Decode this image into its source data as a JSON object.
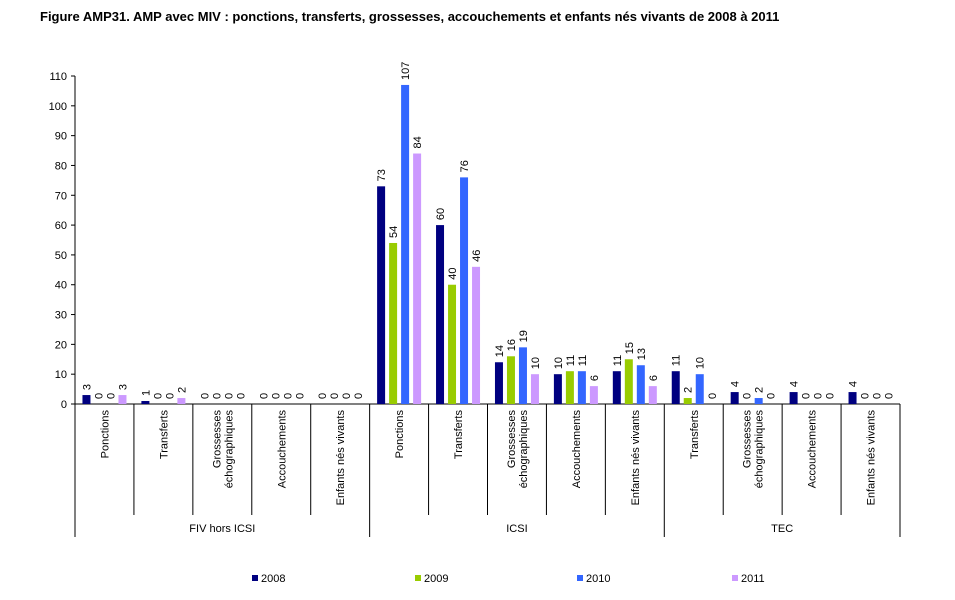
{
  "title": "Figure AMP31. AMP avec MIV : ponctions, transferts, grossesses, accouchements et enfants nés vivants de 2008 à 2011",
  "chart_data": {
    "type": "bar",
    "title": "Figure AMP31. AMP avec MIV : ponctions, transferts, grossesses, accouchements et enfants nés vivants de 2008 à 2011",
    "xlabel": "",
    "ylabel": "",
    "ylim": [
      0,
      110
    ],
    "yticks": [
      0,
      10,
      20,
      30,
      40,
      50,
      60,
      70,
      80,
      90,
      100,
      110
    ],
    "grid": false,
    "legend_position": "bottom",
    "groups": [
      {
        "label": "FIV hors ICSI",
        "categories": [
          "Ponctions",
          "Transferts",
          "Grossesses échographiques",
          "Accouchements",
          "Enfants nés vivants"
        ]
      },
      {
        "label": "ICSI",
        "categories": [
          "Ponctions",
          "Transferts",
          "Grossesses échographiques",
          "Accouchements",
          "Enfants nés vivants"
        ]
      },
      {
        "label": "TEC",
        "categories": [
          "Transferts",
          "Grossesses échographiques",
          "Accouchements",
          "Enfants nés vivants"
        ]
      }
    ],
    "categories": [
      [
        "Ponctions"
      ],
      [
        "Transferts"
      ],
      [
        "Grossesses",
        "échographiques"
      ],
      [
        "Accouchements"
      ],
      [
        "Enfants nés vivants"
      ],
      [
        "Ponctions"
      ],
      [
        "Transferts"
      ],
      [
        "Grossesses",
        "échographiques"
      ],
      [
        "Accouchements"
      ],
      [
        "Enfants nés vivants"
      ],
      [
        "Transferts"
      ],
      [
        "Grossesses",
        "échographiques"
      ],
      [
        "Accouchements"
      ],
      [
        "Enfants nés vivants"
      ]
    ],
    "series": [
      {
        "name": "2008",
        "color": "#000080",
        "values": [
          3,
          1,
          0,
          0,
          0,
          73,
          60,
          14,
          10,
          11,
          11,
          4,
          4,
          4
        ]
      },
      {
        "name": "2009",
        "color": "#99cc00",
        "values": [
          0,
          0,
          0,
          0,
          0,
          54,
          40,
          16,
          11,
          15,
          2,
          0,
          0,
          0
        ]
      },
      {
        "name": "2010",
        "color": "#3366ff",
        "values": [
          0,
          0,
          0,
          0,
          0,
          107,
          76,
          19,
          11,
          13,
          10,
          2,
          0,
          0
        ]
      },
      {
        "name": "2011",
        "color": "#cc99ff",
        "values": [
          3,
          2,
          0,
          0,
          0,
          84,
          46,
          10,
          6,
          6,
          0,
          0,
          0,
          0
        ]
      }
    ]
  }
}
